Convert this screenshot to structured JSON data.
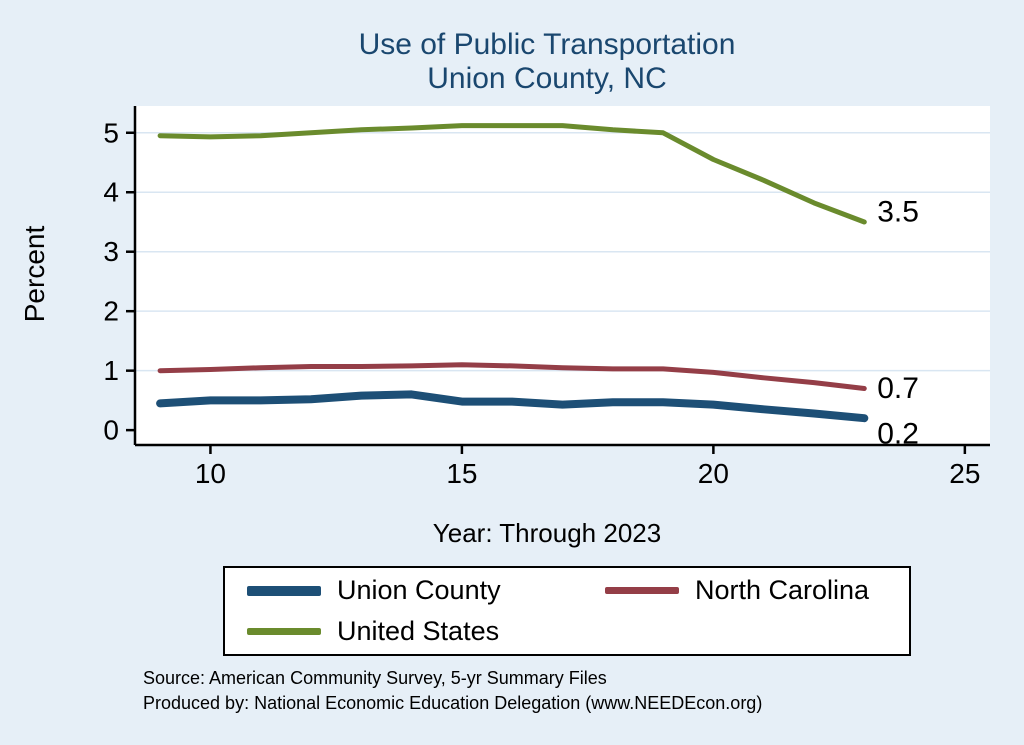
{
  "header": {
    "title_line1": "Use of Public Transportation",
    "title_line2": "Union County, NC"
  },
  "colors": {
    "background": "#e6eff7",
    "title": "#1a476f",
    "plot_background": "#ffffff",
    "axis": "#000000",
    "grid": "#d9e6f2"
  },
  "chart_data": {
    "type": "line",
    "title": "Use of Public Transportation — Union County, NC",
    "xlabel": "Year: Through 2023",
    "ylabel": "Percent",
    "xlim": [
      8.5,
      25.5
    ],
    "ylim": [
      -0.25,
      5.45
    ],
    "x_ticks": [
      10,
      15,
      20,
      25
    ],
    "y_ticks": [
      0,
      1,
      2,
      3,
      4,
      5
    ],
    "grid": true,
    "legend_position": "bottom",
    "x": [
      9,
      10,
      11,
      12,
      13,
      14,
      15,
      16,
      17,
      18,
      19,
      20,
      21,
      22,
      23
    ],
    "series": [
      {
        "name": "Union County",
        "color": "#1d4f76",
        "width": 8,
        "end_label": "0.2",
        "label_dy": 16,
        "values": [
          0.45,
          0.5,
          0.5,
          0.52,
          0.58,
          0.6,
          0.48,
          0.48,
          0.43,
          0.47,
          0.47,
          0.43,
          0.35,
          0.28,
          0.2
        ]
      },
      {
        "name": "North Carolina",
        "color": "#943e47",
        "width": 5,
        "end_label": "0.7",
        "label_dy": 0,
        "values": [
          1.0,
          1.02,
          1.05,
          1.07,
          1.07,
          1.08,
          1.1,
          1.08,
          1.05,
          1.03,
          1.03,
          0.97,
          0.88,
          0.8,
          0.7
        ]
      },
      {
        "name": "United States",
        "color": "#6a8b2d",
        "width": 5,
        "end_label": "3.5",
        "label_dy": -10,
        "values": [
          4.95,
          4.93,
          4.95,
          5.0,
          5.05,
          5.08,
          5.12,
          5.12,
          5.12,
          5.05,
          5.0,
          4.55,
          4.2,
          3.82,
          3.5
        ]
      }
    ]
  },
  "footer": {
    "line1": "Source: American Community Survey, 5-yr Summary Files",
    "line2": "Produced by: National Economic Education Delegation (www.NEEDEcon.org)"
  }
}
